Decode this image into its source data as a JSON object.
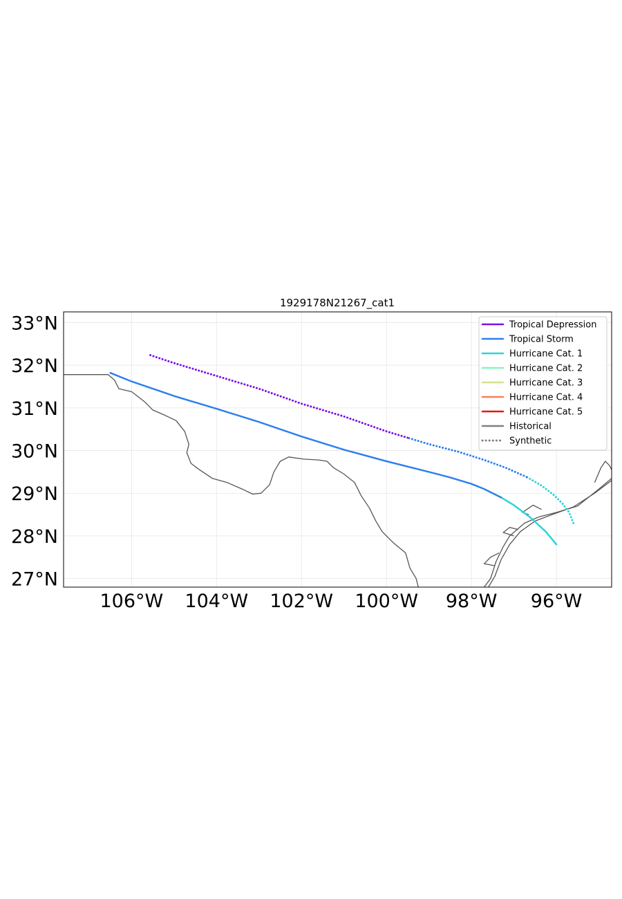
{
  "chart_data": {
    "type": "map-track",
    "title": "1929178N21267_cat1",
    "xlim": [
      -107.6,
      -94.7
    ],
    "ylim": [
      26.8,
      33.25
    ],
    "xticks": [
      {
        "value": -106,
        "label": "106°W"
      },
      {
        "value": -104,
        "label": "104°W"
      },
      {
        "value": -102,
        "label": "102°W"
      },
      {
        "value": -100,
        "label": "100°W"
      },
      {
        "value": -98,
        "label": "98°W"
      },
      {
        "value": -96,
        "label": "96°W"
      }
    ],
    "yticks": [
      {
        "value": 27,
        "label": "27°N"
      },
      {
        "value": 28,
        "label": "28°N"
      },
      {
        "value": 29,
        "label": "29°N"
      },
      {
        "value": 30,
        "label": "30°N"
      },
      {
        "value": 31,
        "label": "31°N"
      },
      {
        "value": 32,
        "label": "32°N"
      },
      {
        "value": 33,
        "label": "33°N"
      }
    ],
    "grid": true,
    "legend_position": "top-right",
    "legend": [
      {
        "label": "Tropical Depression",
        "color": "#7b0fe8",
        "style": "solid"
      },
      {
        "label": "Tropical Storm",
        "color": "#2f80ed",
        "style": "solid"
      },
      {
        "label": "Hurricane Cat. 1",
        "color": "#2ed3d8",
        "style": "solid"
      },
      {
        "label": "Hurricane Cat. 2",
        "color": "#85f5c2",
        "style": "solid"
      },
      {
        "label": "Hurricane Cat. 3",
        "color": "#d3e08f",
        "style": "solid"
      },
      {
        "label": "Hurricane Cat. 4",
        "color": "#fb7f50",
        "style": "solid"
      },
      {
        "label": "Hurricane Cat. 5",
        "color": "#e8170f",
        "style": "solid"
      },
      {
        "label": "Historical",
        "color": "#808080",
        "style": "solid"
      },
      {
        "label": "Synthetic",
        "color": "#808080",
        "style": "dotted"
      }
    ],
    "tracks": [
      {
        "kind": "historical",
        "segments": [
          {
            "category": "Hurricane Cat. 1",
            "color": "#2ed3d8",
            "points": [
              [
                -96.0,
                27.8
              ],
              [
                -96.25,
                28.1
              ],
              [
                -96.6,
                28.42
              ],
              [
                -97.0,
                28.72
              ],
              [
                -97.3,
                28.9
              ]
            ]
          },
          {
            "category": "Tropical Storm",
            "color": "#2f80ed",
            "points": [
              [
                -97.3,
                28.9
              ],
              [
                -97.7,
                29.1
              ],
              [
                -98.0,
                29.22
              ],
              [
                -98.5,
                29.37
              ],
              [
                -99.0,
                29.5
              ],
              [
                -100.0,
                29.75
              ],
              [
                -101.0,
                30.02
              ],
              [
                -102.0,
                30.33
              ],
              [
                -103.0,
                30.67
              ],
              [
                -104.0,
                30.98
              ],
              [
                -105.0,
                31.28
              ],
              [
                -106.0,
                31.62
              ],
              [
                -106.5,
                31.82
              ]
            ]
          }
        ]
      },
      {
        "kind": "synthetic",
        "segments": [
          {
            "category": "Hurricane Cat. 1",
            "color": "#2ed3d8",
            "points": [
              [
                -95.6,
                28.3
              ],
              [
                -95.7,
                28.55
              ],
              [
                -95.85,
                28.75
              ],
              [
                -96.05,
                28.95
              ],
              [
                -96.35,
                29.18
              ],
              [
                -96.7,
                29.38
              ]
            ]
          },
          {
            "category": "Tropical Storm",
            "color": "#2f80ed",
            "points": [
              [
                -96.7,
                29.38
              ],
              [
                -97.2,
                29.6
              ],
              [
                -97.7,
                29.78
              ],
              [
                -98.3,
                29.97
              ],
              [
                -99.0,
                30.15
              ],
              [
                -99.5,
                30.3
              ]
            ]
          },
          {
            "category": "Tropical Depression",
            "color": "#7b0fe8",
            "points": [
              [
                -99.5,
                30.3
              ],
              [
                -100.0,
                30.45
              ],
              [
                -101.0,
                30.8
              ],
              [
                -102.0,
                31.1
              ],
              [
                -103.0,
                31.45
              ],
              [
                -104.0,
                31.75
              ],
              [
                -105.0,
                32.05
              ],
              [
                -105.6,
                32.25
              ]
            ]
          }
        ]
      }
    ],
    "coastlines": [
      [
        [
          -107.6,
          31.78
        ],
        [
          -106.55,
          31.78
        ],
        [
          -106.4,
          31.65
        ],
        [
          -106.3,
          31.45
        ],
        [
          -106.0,
          31.38
        ],
        [
          -105.7,
          31.15
        ],
        [
          -105.5,
          30.95
        ],
        [
          -105.2,
          30.82
        ],
        [
          -104.95,
          30.7
        ],
        [
          -104.75,
          30.45
        ],
        [
          -104.65,
          30.15
        ],
        [
          -104.7,
          29.95
        ],
        [
          -104.6,
          29.7
        ],
        [
          -104.4,
          29.55
        ],
        [
          -104.1,
          29.35
        ],
        [
          -103.75,
          29.25
        ],
        [
          -103.4,
          29.1
        ],
        [
          -103.15,
          28.98
        ],
        [
          -102.95,
          29.0
        ],
        [
          -102.75,
          29.2
        ],
        [
          -102.65,
          29.5
        ],
        [
          -102.5,
          29.75
        ],
        [
          -102.3,
          29.85
        ],
        [
          -101.95,
          29.8
        ],
        [
          -101.6,
          29.78
        ],
        [
          -101.4,
          29.75
        ],
        [
          -101.25,
          29.6
        ],
        [
          -101.0,
          29.45
        ],
        [
          -100.75,
          29.25
        ],
        [
          -100.6,
          28.95
        ],
        [
          -100.4,
          28.65
        ],
        [
          -100.25,
          28.35
        ],
        [
          -100.1,
          28.1
        ],
        [
          -99.85,
          27.85
        ],
        [
          -99.55,
          27.6
        ],
        [
          -99.45,
          27.25
        ],
        [
          -99.3,
          27.0
        ],
        [
          -99.25,
          26.8
        ]
      ],
      [
        [
          -97.7,
          26.8
        ],
        [
          -97.55,
          27.0
        ],
        [
          -97.42,
          27.4
        ],
        [
          -97.25,
          27.75
        ],
        [
          -97.1,
          28.0
        ],
        [
          -96.75,
          28.3
        ],
        [
          -96.4,
          28.45
        ],
        [
          -96.0,
          28.55
        ],
        [
          -95.5,
          28.7
        ],
        [
          -95.0,
          29.1
        ],
        [
          -94.7,
          29.35
        ]
      ],
      [
        [
          -97.6,
          26.8
        ],
        [
          -97.45,
          27.05
        ],
        [
          -97.3,
          27.45
        ],
        [
          -97.1,
          27.8
        ],
        [
          -96.85,
          28.1
        ],
        [
          -96.5,
          28.35
        ],
        [
          -96.1,
          28.5
        ],
        [
          -95.6,
          28.68
        ],
        [
          -95.1,
          29.0
        ],
        [
          -94.7,
          29.3
        ]
      ],
      [
        [
          -97.45,
          27.3
        ],
        [
          -97.7,
          27.35
        ],
        [
          -97.55,
          27.5
        ],
        [
          -97.35,
          27.6
        ]
      ],
      [
        [
          -97.0,
          28.0
        ],
        [
          -97.25,
          28.08
        ],
        [
          -97.1,
          28.2
        ],
        [
          -96.9,
          28.15
        ]
      ],
      [
        [
          -96.65,
          28.5
        ],
        [
          -96.8,
          28.55
        ],
        [
          -96.55,
          28.72
        ],
        [
          -96.35,
          28.62
        ]
      ],
      [
        [
          -95.1,
          29.25
        ],
        [
          -94.95,
          29.6
        ],
        [
          -94.85,
          29.75
        ],
        [
          -94.75,
          29.65
        ],
        [
          -94.7,
          29.55
        ]
      ]
    ]
  }
}
